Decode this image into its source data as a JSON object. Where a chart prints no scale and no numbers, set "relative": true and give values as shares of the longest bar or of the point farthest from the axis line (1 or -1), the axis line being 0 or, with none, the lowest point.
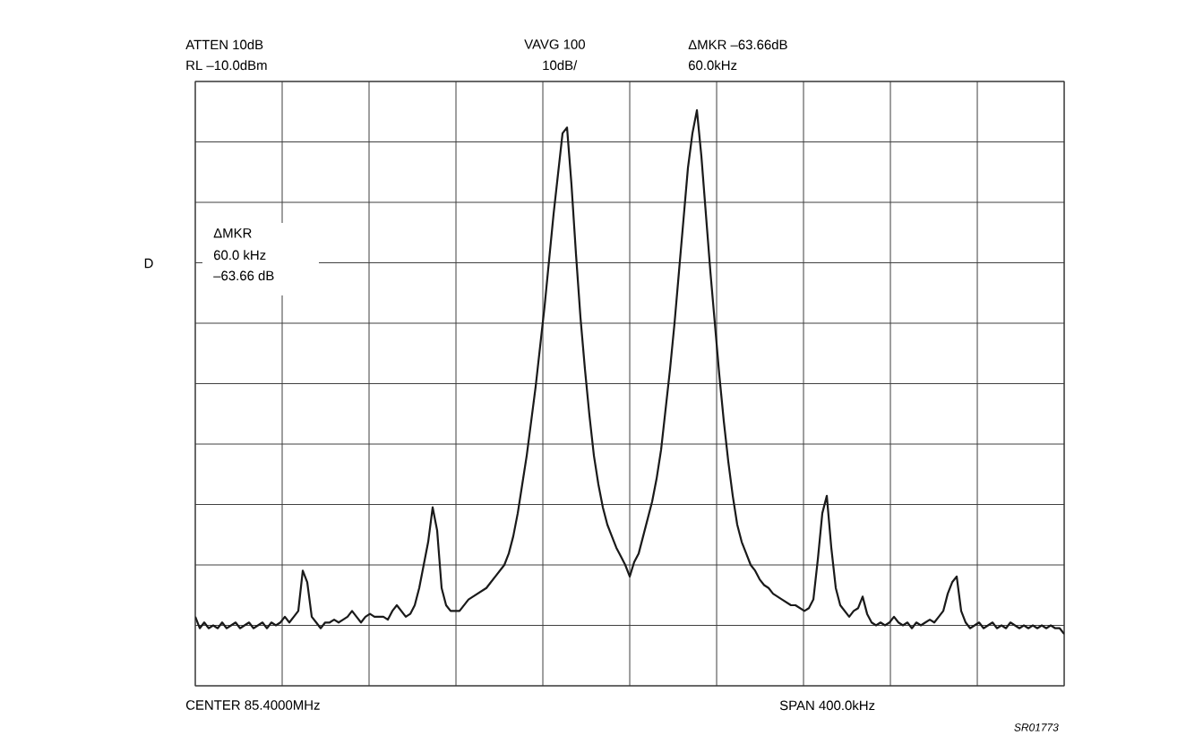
{
  "chart_data": {
    "type": "line",
    "relative": true,
    "grid": true,
    "categories": [
      null,
      null,
      null,
      null,
      null,
      null,
      null,
      null,
      null,
      null,
      null,
      null,
      null,
      null,
      null,
      null,
      null,
      null,
      null,
      null,
      null,
      null,
      null,
      null,
      null,
      null,
      null,
      null,
      null,
      null,
      null,
      null,
      null,
      null,
      null,
      null,
      null,
      null,
      null,
      null,
      null,
      null,
      null,
      null,
      null,
      null,
      null,
      null,
      null,
      null,
      null,
      null,
      null,
      null,
      null,
      null,
      null,
      null,
      null,
      null,
      null,
      null,
      null,
      null,
      null,
      null,
      null,
      null,
      null,
      null,
      null,
      null,
      null,
      null,
      null,
      null,
      null,
      null,
      null,
      null,
      null,
      null,
      null,
      null,
      null,
      null,
      null,
      null,
      null,
      null,
      null,
      null,
      null,
      null,
      null,
      null,
      null,
      null,
      null,
      null,
      null,
      null,
      null,
      null,
      null,
      null,
      null,
      null,
      null,
      null,
      null,
      null,
      null,
      null,
      null,
      null,
      null,
      null,
      null,
      null,
      null,
      null,
      null,
      null,
      null,
      null,
      null,
      null,
      null,
      null,
      null,
      null,
      null,
      null,
      null,
      null,
      null,
      null,
      null,
      null,
      null,
      null,
      null,
      null,
      null,
      null,
      null,
      null,
      null,
      null,
      null,
      null,
      null,
      null,
      null,
      null,
      null,
      null,
      null,
      null,
      null,
      null,
      null,
      null,
      null,
      null,
      null,
      null,
      null,
      null,
      null,
      null,
      null,
      null,
      null,
      null,
      null,
      null,
      null,
      null,
      null,
      null,
      null,
      null,
      null,
      null,
      null,
      null,
      null,
      null,
      null,
      null,
      null,
      null,
      null
    ],
    "series": [
      {
        "color": "#1a1a1a",
        "values": [
          0.12,
          0.1,
          0.11,
          0.1,
          0.105,
          0.1,
          0.11,
          0.1,
          0.105,
          0.11,
          0.1,
          0.105,
          0.11,
          0.1,
          0.105,
          0.11,
          0.1,
          0.11,
          0.105,
          0.11,
          0.12,
          0.11,
          0.12,
          0.13,
          0.2,
          0.18,
          0.12,
          0.11,
          0.1,
          0.11,
          0.11,
          0.115,
          0.11,
          0.115,
          0.12,
          0.13,
          0.12,
          0.11,
          0.12,
          0.125,
          0.12,
          0.12,
          0.12,
          0.115,
          0.13,
          0.14,
          0.13,
          0.12,
          0.125,
          0.14,
          0.17,
          0.21,
          0.25,
          0.31,
          0.27,
          0.17,
          0.14,
          0.13,
          0.13,
          0.13,
          0.14,
          0.15,
          0.155,
          0.16,
          0.165,
          0.17,
          0.18,
          0.19,
          0.2,
          0.21,
          0.23,
          0.26,
          0.3,
          0.35,
          0.4,
          0.46,
          0.52,
          0.59,
          0.66,
          0.74,
          0.82,
          0.89,
          0.96,
          0.97,
          0.87,
          0.75,
          0.64,
          0.55,
          0.47,
          0.4,
          0.35,
          0.31,
          0.28,
          0.26,
          0.24,
          0.225,
          0.21,
          0.19,
          0.215,
          0.23,
          0.26,
          0.29,
          0.32,
          0.36,
          0.41,
          0.48,
          0.55,
          0.63,
          0.72,
          0.81,
          0.9,
          0.96,
          1.0,
          0.92,
          0.82,
          0.72,
          0.63,
          0.54,
          0.46,
          0.39,
          0.33,
          0.28,
          0.25,
          0.23,
          0.21,
          0.2,
          0.185,
          0.175,
          0.17,
          0.16,
          0.155,
          0.15,
          0.145,
          0.14,
          0.14,
          0.135,
          0.13,
          0.135,
          0.15,
          0.22,
          0.3,
          0.33,
          0.24,
          0.17,
          0.14,
          0.13,
          0.12,
          0.13,
          0.135,
          0.155,
          0.125,
          0.11,
          0.105,
          0.11,
          0.105,
          0.11,
          0.12,
          0.11,
          0.105,
          0.11,
          0.1,
          0.11,
          0.105,
          0.11,
          0.115,
          0.11,
          0.12,
          0.13,
          0.16,
          0.18,
          0.19,
          0.13,
          0.11,
          0.1,
          0.105,
          0.11,
          0.1,
          0.105,
          0.11,
          0.1,
          0.105,
          0.1,
          0.11,
          0.105,
          0.1,
          0.105,
          0.1,
          0.105,
          0.1,
          0.105,
          0.1,
          0.105,
          0.1,
          0.1,
          0.09
        ]
      }
    ],
    "annotations": [
      "ATTEN 10dB",
      "RL –10.0dBm",
      "VAVG 100",
      "10dB/",
      "ΔMKR –63.66dB",
      "60.0kHz",
      "ΔMKR",
      "60.0 kHz",
      "–63.66 dB",
      "D",
      "CENTER 85.4000MHz",
      "SPAN 400.0kHz",
      "SR01773"
    ]
  }
}
